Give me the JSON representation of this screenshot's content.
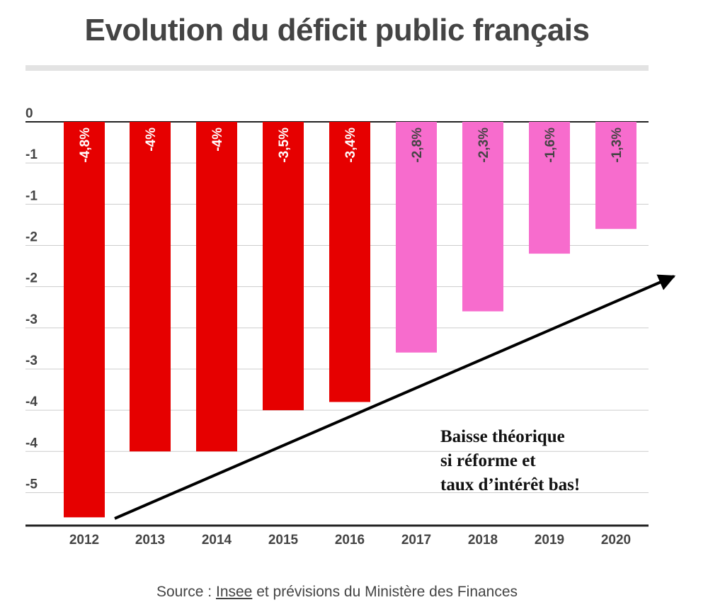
{
  "title": "Evolution du déficit public français",
  "source": {
    "prefix": "Source : ",
    "link": "Insee",
    "suffix": " et prévisions du Ministère des Finances"
  },
  "annotation": [
    "Baisse théorique",
    "si réforme et",
    "taux d’intérêt bas!"
  ],
  "colors": {
    "actual": "#e60000",
    "forecast": "#f76ccd",
    "text": "#444444",
    "grid": "#cccccc"
  },
  "chart_data": {
    "type": "bar",
    "categories": [
      "2012",
      "2013",
      "2014",
      "2015",
      "2016",
      "2017",
      "2018",
      "2019",
      "2020"
    ],
    "values": [
      -4.8,
      -4,
      -4,
      -3.5,
      -3.4,
      -2.8,
      -2.3,
      -1.6,
      -1.3
    ],
    "data_labels": [
      "-4,8%",
      "-4%",
      "-4%",
      "-3,5%",
      "-3,4%",
      "-2,8%",
      "-2,3%",
      "-1,6%",
      "-1,3%"
    ],
    "bar_kind": [
      "actual",
      "actual",
      "actual",
      "actual",
      "actual",
      "forecast",
      "forecast",
      "forecast",
      "forecast"
    ],
    "y_tick_values": [
      0,
      -0.5,
      -1,
      -1.5,
      -2,
      -2.5,
      -3,
      -3.5,
      -4,
      -4.5
    ],
    "y_tick_labels": [
      "0",
      "-1",
      "-1",
      "-2",
      "-2",
      "-3",
      "-3",
      "-4",
      "-4",
      "-5"
    ],
    "ylim": [
      -4.9,
      0
    ],
    "grid": true,
    "xlabel": "",
    "ylabel": "",
    "trend_arrow": true
  }
}
